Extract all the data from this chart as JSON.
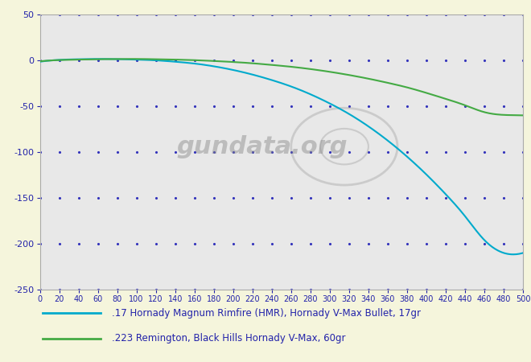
{
  "bg_color": "#f5f5dc",
  "plot_bg_color": "#e8e8e8",
  "grid_color": "#3333bb",
  "xlabel_color": "#2222aa",
  "ylabel_color": "#2222aa",
  "xmin": 0,
  "xmax": 500,
  "ymin": -250,
  "ymax": 50,
  "xticks": [
    0,
    20,
    40,
    60,
    80,
    100,
    120,
    140,
    160,
    180,
    200,
    220,
    240,
    260,
    280,
    300,
    320,
    340,
    360,
    380,
    400,
    420,
    440,
    460,
    480,
    500
  ],
  "yticks_labeled": [
    50,
    0,
    -50,
    -100,
    -150,
    -200,
    -250
  ],
  "yticks_minor": [
    25,
    -25,
    -75,
    -125,
    -175,
    -225
  ],
  "hmr_color": "#00aacc",
  "rem223_color": "#44aa44",
  "legend_hmr": ".17 Hornady Magnum Rimfire (HMR), Hornady V-Max Bullet, 17gr",
  "legend_223": ".223 Remington, Black Hills Hornady V-Max, 60gr",
  "watermark_text": "gundata.org",
  "hmr_x": [
    0,
    20,
    40,
    60,
    80,
    100,
    120,
    140,
    160,
    180,
    200,
    220,
    240,
    260,
    280,
    300,
    320,
    340,
    360,
    380,
    400,
    420,
    440,
    460,
    480,
    500
  ],
  "hmr_y": [
    -1.5,
    0.5,
    1.2,
    1.5,
    1.3,
    0.8,
    0.0,
    -1.5,
    -3.5,
    -6.5,
    -10.5,
    -15.5,
    -21.5,
    -28.5,
    -37.0,
    -47.0,
    -58.5,
    -72.0,
    -87.5,
    -105.0,
    -124.5,
    -146.0,
    -170.0,
    -196.0,
    -210.0,
    -210.0
  ],
  "rem223_x": [
    0,
    20,
    40,
    60,
    80,
    100,
    120,
    140,
    160,
    180,
    200,
    220,
    240,
    260,
    280,
    300,
    320,
    340,
    360,
    380,
    400,
    420,
    440,
    460,
    480,
    500
  ],
  "rem223_y": [
    -1.0,
    0.3,
    0.8,
    1.2,
    1.4,
    1.5,
    1.2,
    0.8,
    0.2,
    -0.7,
    -1.8,
    -3.2,
    -5.0,
    -7.0,
    -9.5,
    -12.5,
    -16.0,
    -20.0,
    -24.5,
    -29.5,
    -35.5,
    -42.0,
    -49.0,
    -56.5,
    -59.5,
    -60.0
  ]
}
